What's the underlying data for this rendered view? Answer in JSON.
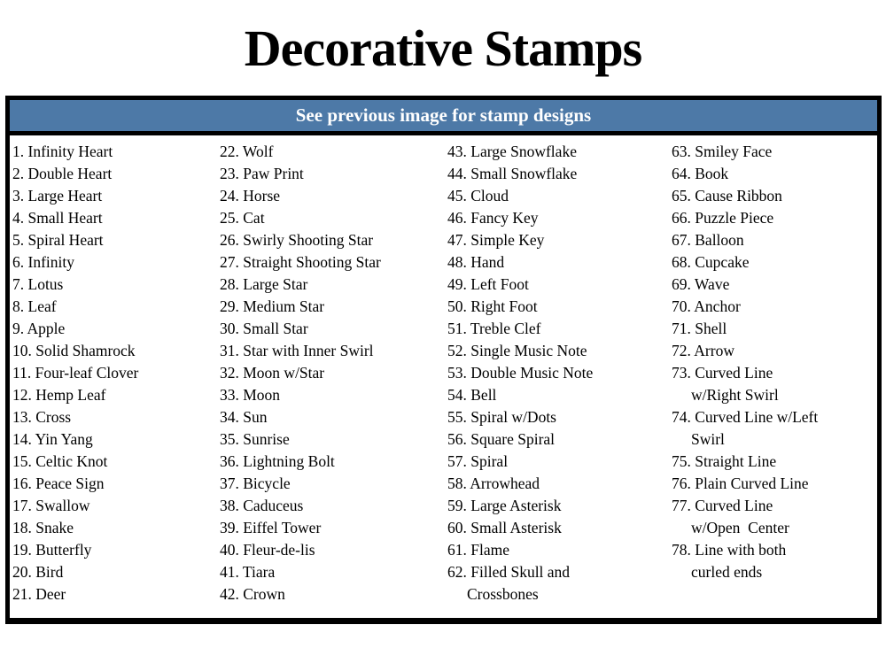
{
  "page": {
    "title": "Decorative Stamps",
    "banner": "See previous image for stamp designs"
  },
  "colors": {
    "banner_bg": "#4d79a7",
    "banner_text": "#ffffff",
    "border": "#000000",
    "text": "#000000"
  },
  "list": {
    "columns": [
      {
        "items": [
          [
            "1. Infinity Heart"
          ],
          [
            "2. Double Heart"
          ],
          [
            "3. Large Heart"
          ],
          [
            "4. Small Heart"
          ],
          [
            "5. Spiral Heart"
          ],
          [
            "6. Infinity"
          ],
          [
            "7. Lotus"
          ],
          [
            "8. Leaf"
          ],
          [
            "9. Apple"
          ],
          [
            "10. Solid Shamrock"
          ],
          [
            "11. Four-leaf Clover"
          ],
          [
            "12. Hemp Leaf"
          ],
          [
            "13. Cross"
          ],
          [
            "14. Yin Yang"
          ],
          [
            "15. Celtic Knot"
          ],
          [
            "16. Peace Sign"
          ],
          [
            "17. Swallow"
          ],
          [
            "18. Snake"
          ],
          [
            "19. Butterfly"
          ],
          [
            "20. Bird"
          ],
          [
            "21. Deer"
          ]
        ]
      },
      {
        "items": [
          [
            "22. Wolf"
          ],
          [
            "23. Paw Print"
          ],
          [
            "24. Horse"
          ],
          [
            "25. Cat"
          ],
          [
            "26. Swirly Shooting Star"
          ],
          [
            "27. Straight Shooting Star"
          ],
          [
            "28. Large Star"
          ],
          [
            "29. Medium Star"
          ],
          [
            "30. Small Star"
          ],
          [
            "31. Star with Inner Swirl"
          ],
          [
            "32. Moon w/Star"
          ],
          [
            "33. Moon"
          ],
          [
            "34. Sun"
          ],
          [
            "35. Sunrise"
          ],
          [
            "36. Lightning Bolt"
          ],
          [
            "37. Bicycle"
          ],
          [
            "38. Caduceus"
          ],
          [
            "39. Eiffel Tower"
          ],
          [
            "40. Fleur-de-lis"
          ],
          [
            "41. Tiara"
          ],
          [
            "42. Crown"
          ]
        ]
      },
      {
        "items": [
          [
            "43. Large Snowflake"
          ],
          [
            "44. Small Snowflake"
          ],
          [
            "45. Cloud"
          ],
          [
            "46. Fancy Key"
          ],
          [
            "47. Simple Key"
          ],
          [
            "48. Hand"
          ],
          [
            "49. Left Foot"
          ],
          [
            "50. Right Foot"
          ],
          [
            "51. Treble Clef"
          ],
          [
            "52. Single Music Note"
          ],
          [
            "53. Double Music Note"
          ],
          [
            "54. Bell"
          ],
          [
            "55. Spiral w/Dots"
          ],
          [
            "56. Square Spiral"
          ],
          [
            "57. Spiral"
          ],
          [
            "58. Arrowhead"
          ],
          [
            "59. Large Asterisk"
          ],
          [
            "60. Small Asterisk"
          ],
          [
            "61. Flame"
          ],
          [
            "62. Filled Skull and",
            "Crossbones"
          ]
        ]
      },
      {
        "items": [
          [
            "63. Smiley Face"
          ],
          [
            "64. Book"
          ],
          [
            "65. Cause Ribbon"
          ],
          [
            "66. Puzzle Piece"
          ],
          [
            "67. Balloon"
          ],
          [
            "68. Cupcake"
          ],
          [
            "69. Wave"
          ],
          [
            "70. Anchor"
          ],
          [
            "71. Shell"
          ],
          [
            "72. Arrow"
          ],
          [
            "73. Curved Line",
            "w/Right Swirl"
          ],
          [
            "74. Curved Line w/Left",
            "Swirl"
          ],
          [
            "75. Straight Line"
          ],
          [
            "76. Plain Curved Line"
          ],
          [
            "77. Curved Line",
            "w/Open  Center"
          ],
          [
            "78. Line with both",
            "curled ends"
          ]
        ]
      }
    ]
  }
}
